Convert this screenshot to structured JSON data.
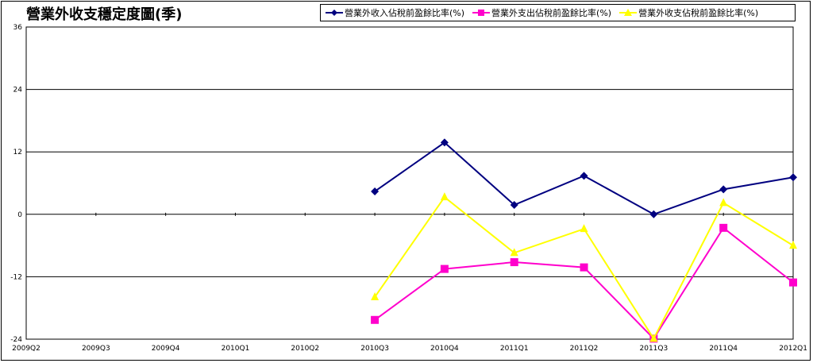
{
  "chart_data": {
    "type": "line",
    "title": "營業外收支穩定度圖(季)",
    "categories": [
      "2009Q2",
      "2009Q3",
      "2009Q4",
      "2010Q1",
      "2010Q2",
      "2010Q3",
      "2010Q4",
      "2011Q1",
      "2011Q2",
      "2011Q3",
      "2011Q4",
      "2012Q1"
    ],
    "ylim": [
      -24,
      36
    ],
    "yticks": [
      -24,
      -12,
      0,
      12,
      24,
      36
    ],
    "grid": true,
    "legend_position": "top-right",
    "series": [
      {
        "name": "營業外收入佔稅前盈餘比率(%)",
        "color": "#000080",
        "marker": "diamond",
        "values": [
          null,
          null,
          null,
          null,
          null,
          4.4,
          13.8,
          1.8,
          7.4,
          0.0,
          4.8,
          7.1
        ]
      },
      {
        "name": "營業外支出佔稅前盈餘比率(%)",
        "color": "#ff00cc",
        "marker": "square",
        "values": [
          null,
          null,
          null,
          null,
          null,
          -20.3,
          -10.5,
          -9.2,
          -10.2,
          -23.9,
          -2.6,
          -13.1
        ]
      },
      {
        "name": "營業外收支佔稅前盈餘比率(%)",
        "color": "#ffff00",
        "marker": "triangle",
        "values": [
          null,
          null,
          null,
          null,
          null,
          -15.9,
          3.3,
          -7.4,
          -2.8,
          -23.9,
          2.2,
          -6.0
        ]
      }
    ]
  }
}
